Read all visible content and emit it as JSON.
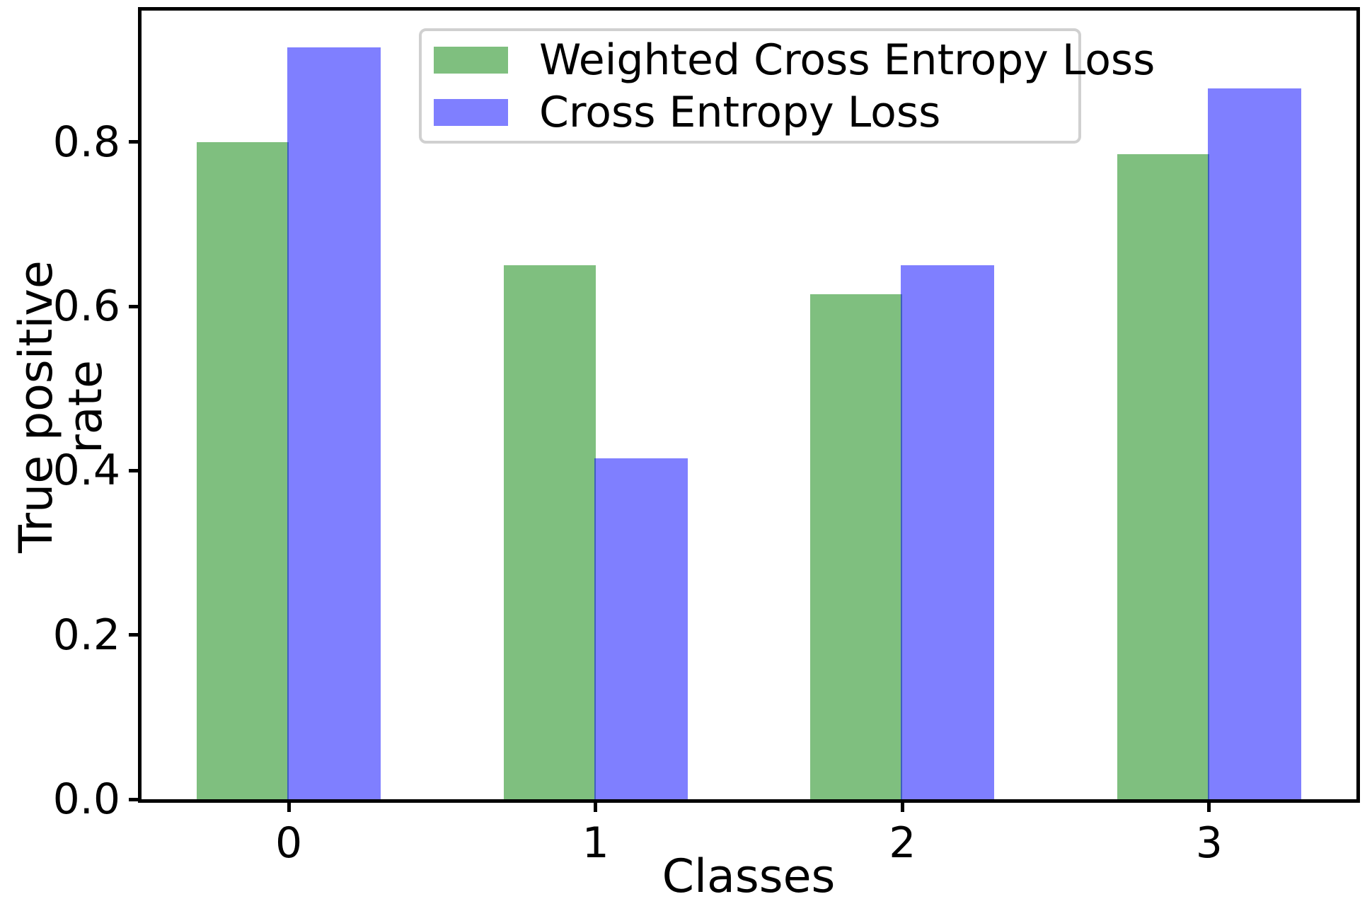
{
  "chart_data": {
    "type": "bar",
    "title": "",
    "xlabel": "Classes",
    "ylabel": "True positive rate",
    "categories": [
      "0",
      "1",
      "2",
      "3"
    ],
    "series": [
      {
        "name": "Weighted Cross Entropy Loss",
        "base_color": "#008000",
        "effective_color": "#80BF80",
        "alpha": 0.5,
        "values": [
          0.8,
          0.65,
          0.615,
          0.785
        ]
      },
      {
        "name": "Cross Entropy Loss",
        "base_color": "#0000FF",
        "effective_color": "#8080FF",
        "alpha": 0.5,
        "values": [
          0.915,
          0.415,
          0.65,
          0.865
        ]
      }
    ],
    "ytick_labels": [
      "0.0",
      "0.2",
      "0.4",
      "0.6",
      "0.8"
    ],
    "ytick_values": [
      0.0,
      0.2,
      0.4,
      0.6,
      0.8
    ],
    "ylim": [
      0,
      0.96
    ],
    "xlim": [
      -0.48,
      3.48
    ],
    "bar_width": 0.3,
    "grid": false,
    "legend_position": "upper center",
    "axis_color": "#000000",
    "legend_border_color": "#d0d0d0",
    "background_color": "#ffffff"
  }
}
